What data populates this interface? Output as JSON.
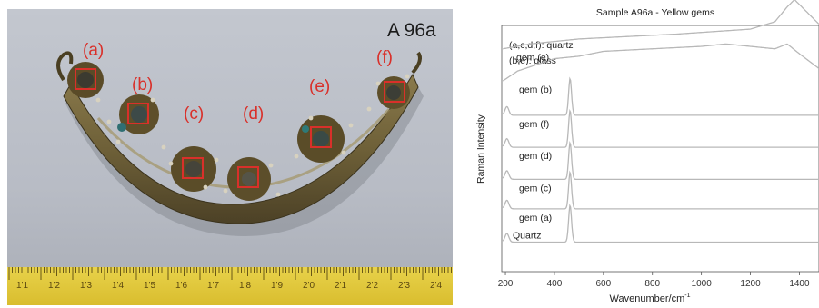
{
  "photo": {
    "sample_label": "A 96a",
    "markers": [
      "(a)",
      "(b)",
      "(c)",
      "(d)",
      "(e)",
      "(f)"
    ],
    "ruler_numbers": [
      "1'1",
      "1'2",
      "1'3",
      "1'4",
      "1'5",
      "1'6",
      "1'7",
      "1'8",
      "1'9",
      "2'0",
      "2'1",
      "2'2",
      "2'3",
      "2'4"
    ]
  },
  "chart_data": {
    "type": "line",
    "title": "Sample A96a - Yellow gems",
    "xlabel": "Wavenumber/cm",
    "xlabel_sup": "-1",
    "ylabel": "Raman Intensity",
    "xlim": [
      185,
      1480
    ],
    "xticks": [
      200,
      400,
      600,
      800,
      1000,
      1200,
      1400
    ],
    "grid": false,
    "legend": {
      "placement": "top-left",
      "entries": [
        "(a,c,d,f): quartz",
        "(b,e): glass"
      ]
    },
    "series": [
      {
        "name": "gem (e)",
        "kind": "glass",
        "baseline": 0.905,
        "x": [
          190,
          300,
          500,
          700,
          900,
          1050,
          1200,
          1300,
          1350,
          1380,
          1420,
          1480
        ],
        "y": [
          0.0,
          0.02,
          0.04,
          0.05,
          0.06,
          0.07,
          0.08,
          0.11,
          0.17,
          0.2,
          0.16,
          0.1
        ]
      },
      {
        "name": "gem (b)",
        "kind": "glass",
        "baseline": 0.775,
        "x": [
          190,
          250,
          400,
          500,
          600,
          800,
          1000,
          1100,
          1200,
          1300,
          1350,
          1400,
          1480
        ],
        "y": [
          0.0,
          0.04,
          0.09,
          0.1,
          0.12,
          0.13,
          0.14,
          0.15,
          0.14,
          0.13,
          0.15,
          0.11,
          0.05
        ]
      },
      {
        "name": "gem (f)",
        "kind": "quartz",
        "baseline": 0.635
      },
      {
        "name": "gem (d)",
        "kind": "quartz",
        "baseline": 0.505
      },
      {
        "name": "gem (c)",
        "kind": "quartz",
        "baseline": 0.375
      },
      {
        "name": "gem (a)",
        "kind": "quartz",
        "baseline": 0.255
      },
      {
        "name": "Quartz",
        "kind": "quartz",
        "baseline": 0.12
      }
    ],
    "quartz_peaks": [
      {
        "x": 464,
        "height": 0.15,
        "width": 6
      },
      {
        "x": 206,
        "height": 0.035,
        "width": 8
      },
      {
        "x": 128,
        "height": 0.02,
        "width": 8
      }
    ],
    "colors": {
      "spectrum": "#b8b8b8",
      "axis": "#555555",
      "marker_box": "#d9302a",
      "marker_text": "#d9302a"
    }
  }
}
